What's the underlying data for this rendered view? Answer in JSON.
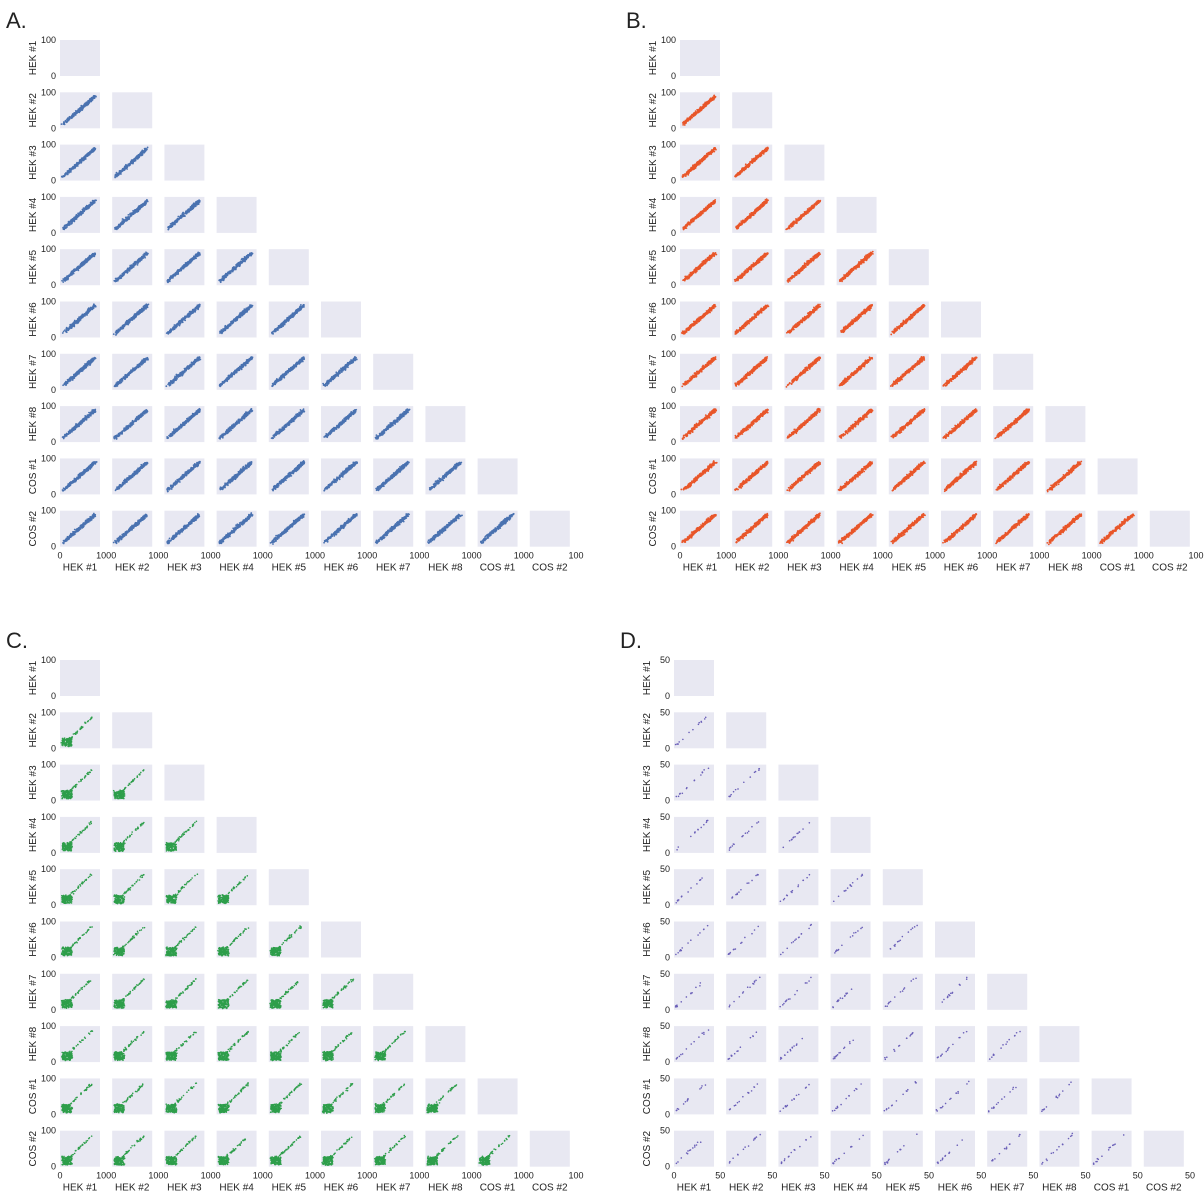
{
  "panel_labels": [
    "A.",
    "B.",
    "C.",
    "D."
  ],
  "colors": {
    "A": "#4a72b0",
    "B": "#e8562a",
    "C": "#2e9e4b",
    "D": "#6a5fb8",
    "cell_background": "#e8e8f2"
  },
  "chart_data": [
    {
      "type": "scatter",
      "panel": "A.",
      "row_labels": [
        "HEK #1",
        "HEK #2",
        "HEK #3",
        "HEK #4",
        "HEK #5",
        "HEK #6",
        "HEK #7",
        "HEK #8",
        "COS #1",
        "COS #2"
      ],
      "col_labels": [
        "HEK #1",
        "HEK #2",
        "HEK #3",
        "HEK #4",
        "HEK #5",
        "HEK #6",
        "HEK #7",
        "HEK #8",
        "COS #1",
        "COS #2"
      ],
      "y_ticks": [
        "0",
        "100"
      ],
      "x_ticks": [
        "0",
        "1000",
        "1000",
        "1000",
        "1000",
        "1000",
        "1000",
        "1000",
        "1000",
        "1000",
        "100"
      ],
      "ylim": [
        0,
        100
      ],
      "pattern": "dense-diagonal"
    },
    {
      "type": "scatter",
      "panel": "B.",
      "row_labels": [
        "HEK #1",
        "HEK #2",
        "HEK #3",
        "HEK #4",
        "HEK #5",
        "HEK #6",
        "HEK #7",
        "HEK #8",
        "COS #1",
        "COS #2"
      ],
      "col_labels": [
        "HEK #1",
        "HEK #2",
        "HEK #3",
        "HEK #4",
        "HEK #5",
        "HEK #6",
        "HEK #7",
        "HEK #8",
        "COS #1",
        "COS #2"
      ],
      "y_ticks": [
        "0",
        "100"
      ],
      "x_ticks": [
        "0",
        "1000",
        "1000",
        "1000",
        "1000",
        "1000",
        "1000",
        "1000",
        "1000",
        "1000",
        "100"
      ],
      "ylim": [
        0,
        100
      ],
      "pattern": "dense-diagonal"
    },
    {
      "type": "scatter",
      "panel": "C.",
      "row_labels": [
        "HEK #1",
        "HEK #2",
        "HEK #3",
        "HEK #4",
        "HEK #5",
        "HEK #6",
        "HEK #7",
        "HEK #8",
        "COS #1",
        "COS #2"
      ],
      "col_labels": [
        "HEK #1",
        "HEK #2",
        "HEK #3",
        "HEK #4",
        "HEK #5",
        "HEK #6",
        "HEK #7",
        "HEK #8",
        "COS #1",
        "COS #2"
      ],
      "y_ticks": [
        "0",
        "100"
      ],
      "x_ticks": [
        "0",
        "1000",
        "1000",
        "1000",
        "1000",
        "1000",
        "1000",
        "1000",
        "1000",
        "1000",
        "100"
      ],
      "ylim": [
        0,
        100
      ],
      "pattern": "cluster-plus-diagonal"
    },
    {
      "type": "scatter",
      "panel": "D.",
      "row_labels": [
        "HEK #1",
        "HEK #2",
        "HEK #3",
        "HEK #4",
        "HEK #5",
        "HEK #6",
        "HEK #7",
        "HEK #8",
        "COS #1",
        "COS #2"
      ],
      "col_labels": [
        "HEK #1",
        "HEK #2",
        "HEK #3",
        "HEK #4",
        "HEK #5",
        "HEK #6",
        "HEK #7",
        "HEK #8",
        "COS #1",
        "COS #2"
      ],
      "y_ticks": [
        "0",
        "50"
      ],
      "x_ticks": [
        "0",
        "50",
        "50",
        "50",
        "50",
        "50",
        "50",
        "50",
        "50",
        "50",
        "50"
      ],
      "ylim": [
        0,
        50
      ],
      "pattern": "sparse-diagonal"
    }
  ]
}
